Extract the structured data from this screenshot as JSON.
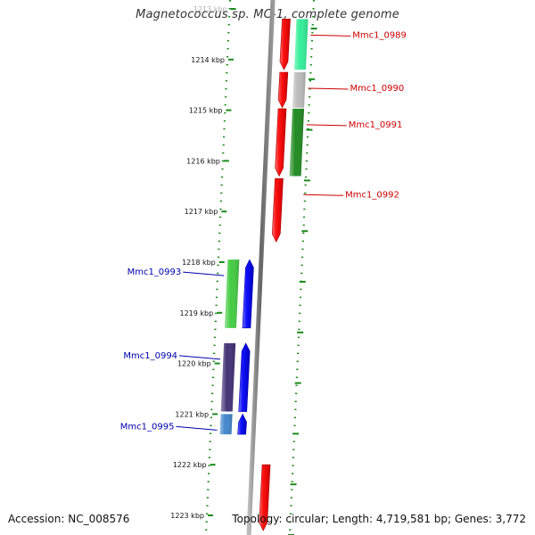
{
  "title": "Magnetococcus sp. MC-1, complete genome",
  "footer": {
    "accession": "Accession: NC_008576",
    "topology": "Topology: circular; Length: 4,719,581 bp; Genes: 3,772"
  },
  "colors": {
    "forward_label": "#cc0000",
    "reverse_label": "#0000aa",
    "backbone": "#888888",
    "scale_dots": "#1a8a1a"
  },
  "scale": {
    "unit": "kbp",
    "ticks": [
      {
        "kbp": 1213,
        "label": "1213 kbp"
      },
      {
        "kbp": 1214,
        "label": "1214 kbp"
      },
      {
        "kbp": 1215,
        "label": "1215 kbp"
      },
      {
        "kbp": 1216,
        "label": "1216 kbp"
      },
      {
        "kbp": 1217,
        "label": "1217 kbp"
      },
      {
        "kbp": 1218,
        "label": "1218 kbp"
      },
      {
        "kbp": 1219,
        "label": "1219 kbp"
      },
      {
        "kbp": 1220,
        "label": "1220 kbp"
      },
      {
        "kbp": 1221,
        "label": "1221 kbp"
      },
      {
        "kbp": 1222,
        "label": "1222 kbp"
      },
      {
        "kbp": 1223,
        "label": "1223 kbp"
      }
    ]
  },
  "genes": [
    {
      "strand": "+",
      "kbp_start": 1213.2,
      "kbp_end": 1214.2,
      "label": "Mmc1_0989",
      "cog_color": "#33ee99",
      "body_color": "#ee1111"
    },
    {
      "strand": "+",
      "kbp_start": 1214.25,
      "kbp_end": 1214.95,
      "label": "Mmc1_0990",
      "cog_color": "#bbbbbb",
      "body_color": "#ee1111"
    },
    {
      "strand": "+",
      "kbp_start": 1214.97,
      "kbp_end": 1216.3,
      "label": "Mmc1_0991",
      "cog_color": "#228b22",
      "body_color": "#ee1111"
    },
    {
      "strand": "+",
      "kbp_start": 1216.35,
      "kbp_end": 1217.6,
      "label": "Mmc1_0992",
      "cog_color": null,
      "body_color": "#ee1111"
    },
    {
      "strand": "-",
      "kbp_start": 1217.95,
      "kbp_end": 1219.3,
      "label": "Mmc1_0993",
      "cog_color": "#44cc44",
      "body_color": "#0000ee"
    },
    {
      "strand": "-",
      "kbp_start": 1219.6,
      "kbp_end": 1220.95,
      "label": "Mmc1_0994",
      "cog_color": "#443377",
      "body_color": "#0000ee"
    },
    {
      "strand": "-",
      "kbp_start": 1221.0,
      "kbp_end": 1221.4,
      "label": "Mmc1_0995",
      "cog_color": "#4488cc",
      "body_color": "#0000ee"
    },
    {
      "strand": "+",
      "kbp_start": 1222.0,
      "kbp_end": 1223.3,
      "label": "",
      "cog_color": null,
      "body_color": "#ee1111"
    }
  ]
}
